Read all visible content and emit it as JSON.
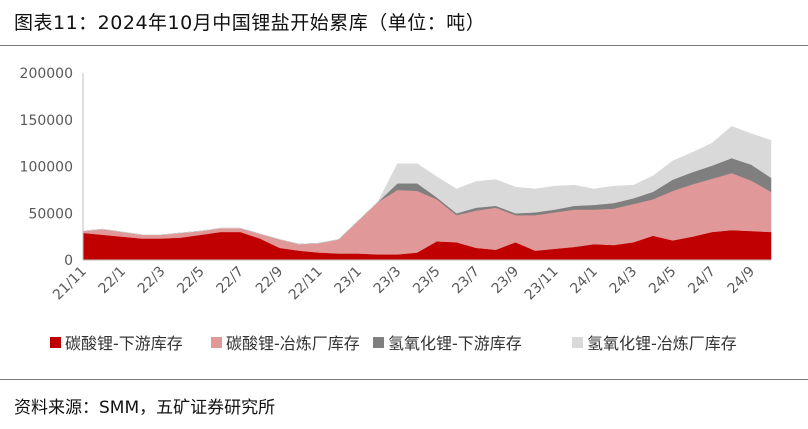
{
  "header": {
    "title": "图表11：2024年10月中国锂盐开始累库（单位：吨）"
  },
  "footer": {
    "source": "资料来源：SMM，五矿证券研究所"
  },
  "chart_data": {
    "type": "area",
    "stacked": true,
    "title": "图表11：2024年10月中国锂盐开始累库（单位：吨）",
    "ylim": [
      0,
      200000
    ],
    "yticks": [
      0,
      50000,
      100000,
      150000,
      200000
    ],
    "ytick_labels": [
      "0",
      "50000",
      "100000",
      "150000",
      "200000"
    ],
    "x": [
      "21/11",
      "21/12",
      "22/1",
      "22/2",
      "22/3",
      "22/4",
      "22/5",
      "22/6",
      "22/7",
      "22/8",
      "22/9",
      "22/10",
      "22/11",
      "22/12",
      "23/1",
      "23/2",
      "23/3",
      "23/4",
      "23/5",
      "23/6",
      "23/7",
      "23/8",
      "23/9",
      "23/10",
      "23/11",
      "23/12",
      "24/1",
      "24/2",
      "24/3",
      "24/4",
      "24/5",
      "24/6",
      "24/7",
      "24/8",
      "24/9",
      "24/10"
    ],
    "xtick_labels": [
      "21/11",
      "22/1",
      "22/3",
      "22/5",
      "22/7",
      "22/9",
      "22/11",
      "23/1",
      "23/3",
      "23/5",
      "23/7",
      "23/9",
      "23/11",
      "24/1",
      "24/3",
      "24/5",
      "24/7",
      "24/9"
    ],
    "legend_position": "bottom",
    "grid": false,
    "series": [
      {
        "name": "碳酸锂-下游库存",
        "color": "#c00000",
        "values": [
          29000,
          27000,
          25000,
          23000,
          23000,
          24000,
          27000,
          30000,
          30000,
          23000,
          13000,
          10000,
          8000,
          7000,
          7000,
          6000,
          6000,
          8000,
          20000,
          19000,
          13000,
          11000,
          19000,
          10000,
          12000,
          14000,
          17000,
          16000,
          19000,
          26000,
          21000,
          25000,
          30000,
          32000,
          31000,
          30000
        ]
      },
      {
        "name": "碳酸锂-冶炼厂库存",
        "color": "#e09898",
        "values": [
          2000,
          6000,
          5000,
          4000,
          4000,
          5000,
          4000,
          4000,
          4000,
          5000,
          9000,
          7000,
          10000,
          15000,
          35000,
          56000,
          69000,
          66000,
          45000,
          29000,
          40000,
          45000,
          29000,
          38000,
          39000,
          40000,
          37000,
          39000,
          41000,
          39000,
          53000,
          56000,
          57000,
          61000,
          54000,
          43000
        ]
      },
      {
        "name": "氢氧化锂-下游库存",
        "color": "#7f7f7f",
        "values": [
          0,
          0,
          0,
          0,
          0,
          0,
          0,
          0,
          0,
          0,
          0,
          0,
          0,
          0,
          0,
          0,
          7000,
          8000,
          2000,
          2000,
          3000,
          2000,
          2000,
          3000,
          3000,
          4000,
          5000,
          6000,
          6000,
          8000,
          12000,
          13000,
          14000,
          16000,
          17000,
          15000
        ]
      },
      {
        "name": "氢氧化锂-冶炼厂库存",
        "color": "#d9d9d9",
        "values": [
          0,
          0,
          0,
          0,
          0,
          0,
          0,
          0,
          0,
          0,
          0,
          0,
          0,
          0,
          0,
          0,
          21000,
          21000,
          22000,
          26000,
          28000,
          28000,
          28000,
          25000,
          25000,
          22000,
          17000,
          18000,
          14000,
          17000,
          20000,
          21000,
          24000,
          34000,
          33000,
          40000
        ]
      }
    ]
  }
}
